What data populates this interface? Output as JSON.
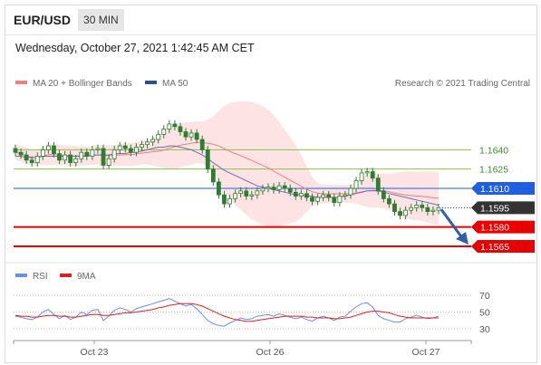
{
  "header": {
    "symbol": "EUR/USD",
    "timeframe": "30 MIN"
  },
  "timestamp": "Wednesday, October 27, 2021 1:42:45 AM CET",
  "legend": {
    "bollinger": "MA 20 + Bollinger Bands",
    "ma50": "MA 50",
    "credit": "Research © 2021 Trading Central"
  },
  "rsi_legend": {
    "rsi": "RSI",
    "ma": "9MA"
  },
  "colors": {
    "candle": "#2e7d32",
    "ma20": "#f08080",
    "bands_fill": "#fde3e3",
    "ma50": "#6d6db5",
    "resistance": "#8bc34a",
    "pivot": "#1f5fe0",
    "support": "#e60000",
    "last_price": "#333333",
    "arrow": "#2f5fa8",
    "rsi": "#6a8fe8",
    "rsi_ma": "#e02020"
  },
  "chart_data": {
    "type": "candlestick",
    "x_labels": [
      "Oct 23",
      "Oct 26",
      "Oct 27"
    ],
    "ylim": [
      1.1553,
      1.1686
    ],
    "levels": [
      {
        "value": "1.1640",
        "kind": "resistance"
      },
      {
        "value": "1.1625",
        "kind": "resistance"
      },
      {
        "value": "1.1610",
        "kind": "pivot"
      },
      {
        "value": "1.1595",
        "kind": "last"
      },
      {
        "value": "1.1580",
        "kind": "support"
      },
      {
        "value": "1.1565",
        "kind": "support"
      }
    ],
    "close": [
      1.1638,
      1.1636,
      1.1632,
      1.163,
      1.1635,
      1.164,
      1.1643,
      1.1637,
      1.1632,
      1.1636,
      1.163,
      1.1633,
      1.1638,
      1.1635,
      1.164,
      1.1641,
      1.1628,
      1.1633,
      1.164,
      1.1643,
      1.1641,
      1.1638,
      1.1642,
      1.1644,
      1.1646,
      1.1648,
      1.1652,
      1.1656,
      1.166,
      1.1658,
      1.1654,
      1.165,
      1.1653,
      1.1648,
      1.164,
      1.1625,
      1.1615,
      1.1605,
      1.1598,
      1.1602,
      1.1606,
      1.1608,
      1.1604,
      1.1605,
      1.1608,
      1.161,
      1.1611,
      1.1609,
      1.1612,
      1.161,
      1.1607,
      1.1604,
      1.1606,
      1.1603,
      1.16,
      1.1603,
      1.1605,
      1.1603,
      1.1599,
      1.1604,
      1.1605,
      1.161,
      1.1616,
      1.1622,
      1.1623,
      1.1618,
      1.1608,
      1.1602,
      1.1598,
      1.1592,
      1.1589,
      1.1593,
      1.1595,
      1.1597,
      1.1595,
      1.1592,
      1.1593,
      1.1595
    ],
    "ma50": [
      1.1635,
      1.1635,
      1.1634,
      1.1634,
      1.1634,
      1.1635,
      1.1635,
      1.1635,
      1.1635,
      1.1635,
      1.1635,
      1.1635,
      1.1635,
      1.1635,
      1.1636,
      1.1636,
      1.1636,
      1.1636,
      1.1637,
      1.1637,
      1.1637,
      1.1638,
      1.1638,
      1.1639,
      1.164,
      1.1641,
      1.1642,
      1.1642,
      1.1643,
      1.1643,
      1.1642,
      1.1641,
      1.164,
      1.1638,
      1.1636,
      1.1633,
      1.163,
      1.1627,
      1.1624,
      1.1622,
      1.162,
      1.1618,
      1.1616,
      1.1614,
      1.1612,
      1.1611,
      1.161,
      1.1609,
      1.1608,
      1.1607,
      1.1606,
      1.1605,
      1.1605,
      1.1604,
      1.1604,
      1.1603,
      1.1603,
      1.1603,
      1.1603,
      1.1603,
      1.1604,
      1.1605,
      1.1606,
      1.1607,
      1.1608,
      1.1608,
      1.1608,
      1.1607,
      1.1606,
      1.1605,
      1.1604,
      1.1603,
      1.1602,
      1.1601,
      1.16,
      1.1599,
      1.1598,
      1.1597
    ],
    "rsi": [
      45,
      44,
      42,
      41,
      44,
      50,
      53,
      47,
      42,
      46,
      41,
      44,
      50,
      47,
      52,
      53,
      40,
      45,
      52,
      55,
      53,
      50,
      54,
      56,
      58,
      60,
      62,
      64,
      66,
      63,
      60,
      57,
      59,
      54,
      47,
      40,
      36,
      34,
      33,
      37,
      40,
      43,
      41,
      42,
      45,
      46,
      47,
      45,
      48,
      46,
      44,
      42,
      44,
      41,
      39,
      43,
      45,
      43,
      40,
      44,
      45,
      51,
      56,
      60,
      61,
      56,
      46,
      42,
      40,
      38,
      38,
      42,
      44,
      46,
      44,
      42,
      43,
      45
    ],
    "rsi_ma": [
      46,
      45,
      45,
      44,
      44,
      45,
      46,
      46,
      45,
      45,
      44,
      44,
      45,
      46,
      47,
      47,
      46,
      46,
      47,
      48,
      49,
      49,
      50,
      51,
      52,
      53,
      55,
      56,
      58,
      59,
      60,
      60,
      60,
      59,
      57,
      54,
      51,
      48,
      45,
      43,
      41,
      40,
      39,
      39,
      40,
      41,
      42,
      43,
      44,
      45,
      45,
      45,
      45,
      44,
      44,
      43,
      43,
      43,
      42,
      42,
      43,
      44,
      46,
      48,
      50,
      51,
      51,
      50,
      49,
      47,
      45,
      44,
      43,
      43,
      43,
      43,
      43,
      43
    ],
    "rsi_axis": [
      "70",
      "50",
      "30"
    ]
  }
}
